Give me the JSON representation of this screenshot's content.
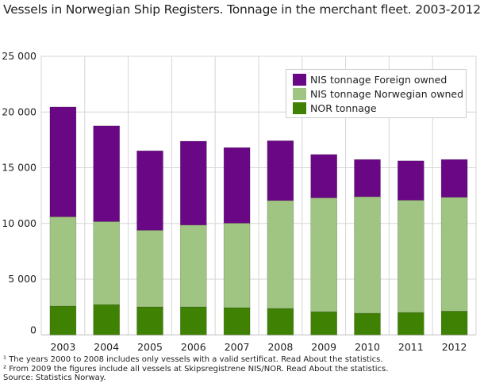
{
  "chart_data": {
    "type": "bar",
    "stacked": true,
    "title": "Vessels in Norwegian Ship Registers. Tonnage in the merchant fleet. 2003-2012",
    "xlabel": "",
    "ylabel": "",
    "ylim": [
      0,
      25000
    ],
    "yticks": [
      "0",
      "5 000",
      "10 000",
      "15 000",
      "20 000",
      "25 000"
    ],
    "grid": true,
    "legend_position": "top-right",
    "categories": [
      "2003",
      "2004",
      "2005",
      "2006",
      "2007",
      "2008",
      "2009",
      "2010",
      "2011",
      "2012"
    ],
    "series": [
      {
        "name": "NOR tonnage",
        "color": "#3f8203",
        "values": [
          2580,
          2720,
          2510,
          2510,
          2440,
          2370,
          2080,
          1940,
          2010,
          2130
        ]
      },
      {
        "name": "NIS tonnage Norwegian owned",
        "color": "#a0c482",
        "values": [
          8020,
          7450,
          6880,
          7350,
          7590,
          9690,
          10220,
          10460,
          10080,
          10220
        ]
      },
      {
        "name": "NIS tonnage Foreign owned",
        "color": "#6a0785",
        "values": [
          9850,
          8580,
          7130,
          7520,
          6780,
          5360,
          3890,
          3340,
          3530,
          3390
        ]
      }
    ],
    "footnotes": [
      "¹ The years 2000 to 2008 includes only vessels with a valid sertificat. Read About the statistics.",
      "² From 2009 the figures include all vessels at Skipsregistrene NIS/NOR. Read About the statistics.",
      "Source: Statistics Norway."
    ]
  }
}
